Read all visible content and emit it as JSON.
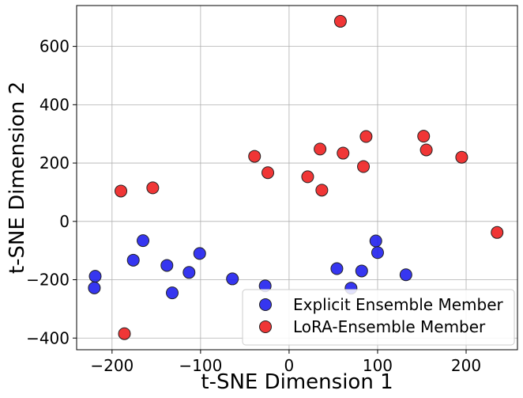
{
  "chart_data": {
    "type": "scatter",
    "title": "",
    "xlabel": "t-SNE Dimension 1",
    "ylabel": "t-SNE Dimension 2",
    "xlim": [
      -240,
      258
    ],
    "ylim": [
      -440,
      740
    ],
    "grid": true,
    "legend_position": "bottom-right",
    "x_ticks": [
      -200,
      -100,
      0,
      100,
      200
    ],
    "y_ticks": [
      -400,
      -200,
      0,
      200,
      400,
      600
    ],
    "x_tick_labels": [
      "−200",
      "−100",
      "0",
      "100",
      "200"
    ],
    "y_tick_labels": [
      "−400",
      "−200",
      "0",
      "200",
      "400",
      "600"
    ],
    "series": [
      {
        "name": "Explicit Ensemble Member",
        "color": "#1a1aee",
        "points": [
          {
            "x": -219,
            "y": -188
          },
          {
            "x": -220,
            "y": -228
          },
          {
            "x": -176,
            "y": -133
          },
          {
            "x": -165,
            "y": -66
          },
          {
            "x": -138,
            "y": -151
          },
          {
            "x": -132,
            "y": -245
          },
          {
            "x": -113,
            "y": -175
          },
          {
            "x": -101,
            "y": -110
          },
          {
            "x": -64,
            "y": -197
          },
          {
            "x": -27,
            "y": -221
          },
          {
            "x": 54,
            "y": -162
          },
          {
            "x": 70,
            "y": -229
          },
          {
            "x": 82,
            "y": -170
          },
          {
            "x": 98,
            "y": -67
          },
          {
            "x": 100,
            "y": -107
          },
          {
            "x": 132,
            "y": -183
          }
        ]
      },
      {
        "name": "LoRA-Ensemble Member",
        "color": "#ee1a1a",
        "points": [
          {
            "x": -190,
            "y": 104
          },
          {
            "x": -154,
            "y": 115
          },
          {
            "x": -186,
            "y": -385
          },
          {
            "x": -39,
            "y": 223
          },
          {
            "x": -24,
            "y": 167
          },
          {
            "x": 21,
            "y": 153
          },
          {
            "x": 35,
            "y": 248
          },
          {
            "x": 37,
            "y": 107
          },
          {
            "x": 58,
            "y": 686
          },
          {
            "x": 61,
            "y": 234
          },
          {
            "x": 84,
            "y": 188
          },
          {
            "x": 87,
            "y": 291
          },
          {
            "x": 152,
            "y": 292
          },
          {
            "x": 155,
            "y": 245
          },
          {
            "x": 195,
            "y": 220
          },
          {
            "x": 235,
            "y": -38
          }
        ]
      }
    ]
  }
}
